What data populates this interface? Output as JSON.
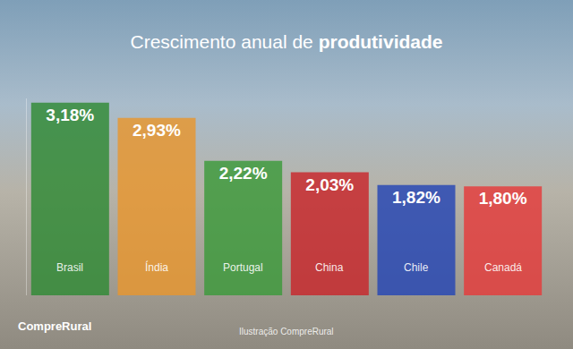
{
  "chart_data": {
    "type": "bar",
    "title": "Crescimento anual de produtividade",
    "categories": [
      "Brasil",
      "Índia",
      "Portugal",
      "China",
      "Chile",
      "Canadá"
    ],
    "values": [
      3.18,
      2.93,
      2.22,
      2.03,
      1.82,
      1.8
    ],
    "value_labels": [
      "3,18%",
      "2,93%",
      "2,22%",
      "2,03%",
      "1,82%",
      "1,80%"
    ],
    "colors": [
      "#2f8a34",
      "#e8962e",
      "#3c9a3a",
      "#c8262b",
      "#2445b5",
      "#e53b3b"
    ],
    "ylim": [
      0,
      3.25
    ],
    "data_labels": true,
    "tick_labels": false,
    "grid": false,
    "annotations": [
      "CompreRural",
      "Ilustração CompreRural"
    ]
  }
}
